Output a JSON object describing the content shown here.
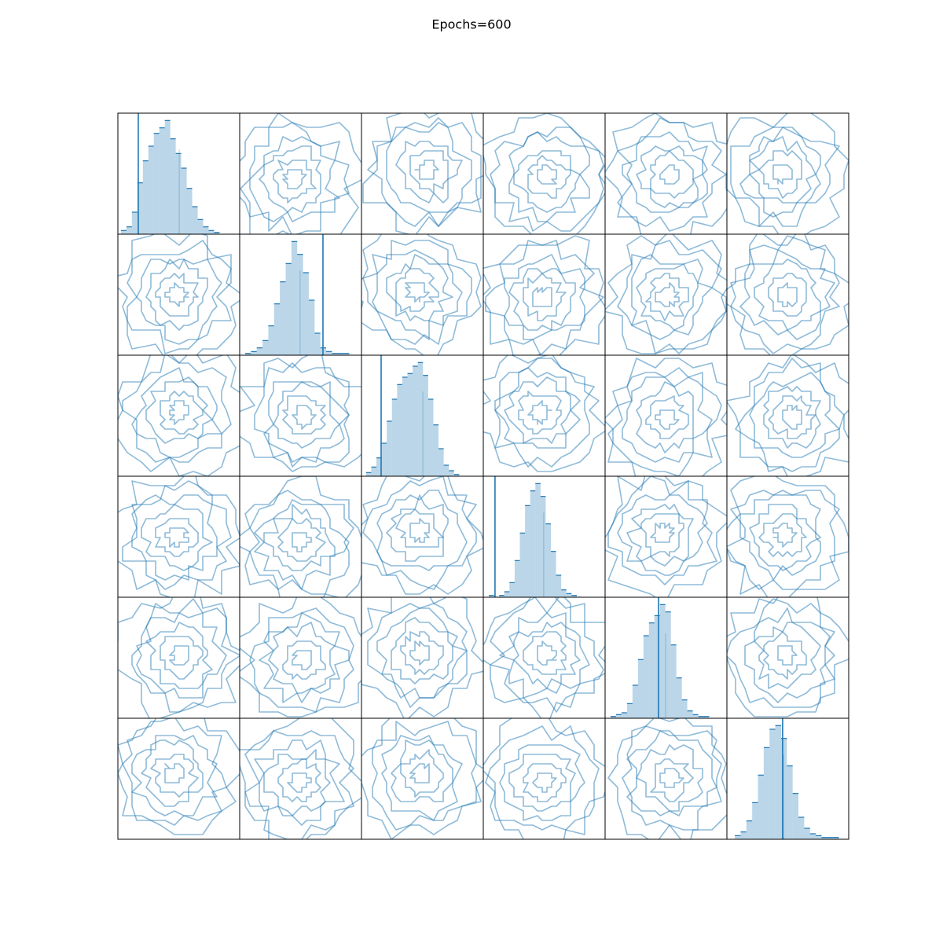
{
  "chart_data": {
    "type": "pair",
    "title": "Epochs=600",
    "color": "#1f77b4",
    "xlim": [
      -4,
      4
    ],
    "ylim": [
      0,
      66
    ],
    "dims": [
      {
        "bins": [
          -3.8,
          -3.44,
          -3.08,
          -2.72,
          -2.36,
          -2.0,
          -1.64,
          -1.28,
          -0.92,
          -0.56,
          -0.2,
          0.16,
          0.52,
          0.88,
          1.24,
          1.6,
          1.96,
          2.32,
          2.68
        ],
        "counts": [
          2,
          4,
          12,
          28,
          40,
          48,
          55,
          58,
          62,
          52,
          44,
          36,
          25,
          15,
          8,
          4,
          2,
          1
        ],
        "truth": -2.66,
        "median": 0.03
      },
      {
        "bins": [
          -3.64,
          -3.26,
          -2.88,
          -2.5,
          -2.12,
          -1.74,
          -1.36,
          -0.98,
          -0.6,
          -0.22,
          0.16,
          0.54,
          0.92,
          1.3,
          1.68,
          2.06,
          2.44,
          2.82,
          3.2
        ],
        "counts": [
          1,
          2,
          4,
          8,
          16,
          28,
          40,
          50,
          62,
          55,
          45,
          30,
          12,
          4,
          2,
          1,
          1,
          1
        ],
        "truth": 1.47,
        "median": -0.03
      },
      {
        "bins": [
          -3.7,
          -3.36,
          -3.02,
          -2.68,
          -2.34,
          -2.0,
          -1.66,
          -1.32,
          -0.98,
          -0.64,
          -0.3,
          0.04,
          0.38,
          0.72,
          1.06,
          1.4,
          1.74,
          2.08,
          2.42
        ],
        "counts": [
          2,
          5,
          10,
          18,
          30,
          42,
          50,
          54,
          56,
          60,
          62,
          55,
          42,
          28,
          15,
          6,
          3,
          1
        ],
        "truth": -2.71,
        "median": 0.03
      },
      {
        "bins": [
          -3.64,
          -3.3,
          -2.96,
          -2.62,
          -2.28,
          -1.94,
          -1.6,
          -1.26,
          -0.92,
          -0.58,
          -0.24,
          0.1,
          0.44,
          0.78,
          1.12,
          1.46,
          1.8,
          2.14,
          2.48
        ],
        "counts": [
          1,
          0,
          1,
          3,
          8,
          20,
          35,
          50,
          58,
          62,
          55,
          40,
          25,
          12,
          4,
          2,
          1,
          0
        ],
        "truth": -3.23,
        "median": -0.03
      },
      {
        "bins": [
          -3.64,
          -3.28,
          -2.92,
          -2.56,
          -2.2,
          -1.84,
          -1.48,
          -1.12,
          -0.76,
          -0.4,
          -0.04,
          0.32,
          0.68,
          1.04,
          1.4,
          1.76,
          2.12,
          2.48,
          2.84
        ],
        "counts": [
          1,
          2,
          3,
          8,
          18,
          32,
          45,
          52,
          56,
          62,
          58,
          40,
          22,
          10,
          4,
          2,
          1,
          1
        ],
        "truth": -0.49,
        "median": -0.03
      },
      {
        "bins": [
          -3.48,
          -3.1,
          -2.72,
          -2.34,
          -1.96,
          -1.58,
          -1.2,
          -0.82,
          -0.44,
          -0.06,
          0.32,
          0.7,
          1.08,
          1.46,
          1.84,
          2.22,
          2.6,
          2.98,
          3.36
        ],
        "counts": [
          2,
          4,
          10,
          20,
          35,
          50,
          60,
          62,
          55,
          40,
          25,
          12,
          6,
          3,
          2,
          1,
          1,
          1
        ],
        "truth": -0.34,
        "median": -0.28
      }
    ]
  }
}
